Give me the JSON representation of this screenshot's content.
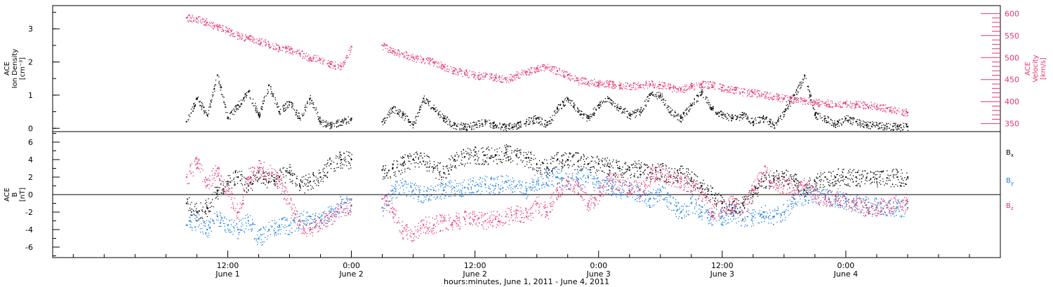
{
  "chart_data": [
    {
      "type": "scatter",
      "panel": "ion-density-velocity",
      "ylabel_lines": [
        "ACE",
        "Ion Density",
        "[cm⁻³]"
      ],
      "ylim": [
        -0.1,
        3.7
      ],
      "yticks": [
        0,
        1,
        2,
        3
      ],
      "y2label_lines": [
        "ACE",
        "Velocity",
        "[km/s]"
      ],
      "y2lim": [
        332,
        618
      ],
      "y2ticks": [
        350,
        400,
        450,
        500,
        550,
        600
      ],
      "series": [
        {
          "name": "Ion Density",
          "axis": "left",
          "color": "#000000",
          "x": [
            8.0,
            9.0,
            10.0,
            11.0,
            12.0,
            13.0,
            14.0,
            15.0,
            16.0,
            17.0,
            18.0,
            19.0,
            20.0,
            21.0,
            22.0,
            23.0,
            24.0,
            27.0,
            28.0,
            29.0,
            30.0,
            31.0,
            32.0,
            33.0,
            34.0,
            35.0,
            36.0,
            37.0,
            38.0,
            39.0,
            40.0,
            41.0,
            42.0,
            43.0,
            44.0,
            45.0,
            46.0,
            47.0,
            48.0,
            49.0,
            50.0,
            51.0,
            52.0,
            53.0,
            54.0,
            55.0,
            56.0,
            57.0,
            58.0,
            59.0,
            60.0,
            61.0,
            62.0,
            63.0,
            64.0,
            65.0,
            66.0,
            67.0,
            68.0,
            69.0,
            70.0,
            71.0,
            72.0,
            73.0,
            74.0,
            75.0,
            76.0,
            77.0,
            78.0
          ],
          "y": [
            0.2,
            0.9,
            0.4,
            1.6,
            0.3,
            0.7,
            1.1,
            0.4,
            1.3,
            0.5,
            0.8,
            0.3,
            0.9,
            0.2,
            0.1,
            0.2,
            0.3,
            0.2,
            0.6,
            0.4,
            0.1,
            0.9,
            0.6,
            0.3,
            0.1,
            0.05,
            0.1,
            0.2,
            0.1,
            0.05,
            0.1,
            0.2,
            0.3,
            0.1,
            0.6,
            0.9,
            0.5,
            0.3,
            0.7,
            0.9,
            0.6,
            0.4,
            0.5,
            1.0,
            1.0,
            0.5,
            0.3,
            0.7,
            1.1,
            0.6,
            0.4,
            0.3,
            0.4,
            0.2,
            0.3,
            0.1,
            0.5,
            1.0,
            1.6,
            0.4,
            0.3,
            0.1,
            0.3,
            0.2,
            0.1,
            0.1,
            0.05,
            0.05,
            0.05
          ]
        },
        {
          "name": "Velocity",
          "axis": "right",
          "color": "#e8356a",
          "x": [
            8.0,
            9.0,
            10.0,
            11.0,
            12.0,
            13.0,
            14.0,
            15.0,
            16.0,
            17.0,
            18.0,
            19.0,
            20.0,
            21.0,
            22.0,
            23.0,
            24.0,
            27.0,
            28.0,
            29.0,
            30.0,
            31.0,
            32.0,
            33.0,
            34.0,
            35.0,
            36.0,
            37.0,
            38.0,
            39.0,
            40.0,
            41.0,
            42.0,
            43.0,
            44.0,
            45.0,
            46.0,
            47.0,
            48.0,
            49.0,
            50.0,
            51.0,
            52.0,
            53.0,
            54.0,
            55.0,
            56.0,
            57.0,
            58.0,
            59.0,
            60.0,
            61.0,
            62.0,
            63.0,
            64.0,
            65.0,
            66.0,
            67.0,
            68.0,
            69.0,
            70.0,
            71.0,
            72.0,
            73.0,
            74.0,
            75.0,
            76.0,
            77.0,
            78.0
          ],
          "y": [
            590,
            588,
            580,
            570,
            560,
            550,
            545,
            538,
            530,
            522,
            518,
            510,
            500,
            495,
            485,
            480,
            525,
            528,
            515,
            508,
            500,
            495,
            490,
            480,
            470,
            465,
            460,
            458,
            455,
            450,
            460,
            468,
            475,
            478,
            470,
            460,
            448,
            445,
            442,
            440,
            437,
            435,
            437,
            440,
            438,
            432,
            428,
            435,
            440,
            438,
            432,
            427,
            422,
            420,
            416,
            412,
            408,
            405,
            402,
            398,
            397,
            395,
            395,
            394,
            392,
            390,
            385,
            380,
            375
          ]
        }
      ]
    },
    {
      "type": "scatter",
      "panel": "magnetic-field",
      "ylabel_lines": [
        "ACE",
        "B",
        "[nT]"
      ],
      "ylim": [
        -7.2,
        7.2
      ],
      "yticks": [
        -6,
        -4,
        -2,
        0,
        2,
        4,
        6
      ],
      "zero_line": true,
      "series": [
        {
          "name": "Bx",
          "color": "#000000",
          "x": [
            8.0,
            9.0,
            10.0,
            11.0,
            12.0,
            13.0,
            14.0,
            15.0,
            16.0,
            17.0,
            18.0,
            19.0,
            20.0,
            21.0,
            22.0,
            23.0,
            24.0,
            27.0,
            28.0,
            29.0,
            30.0,
            31.0,
            32.0,
            33.0,
            34.0,
            35.0,
            36.0,
            37.0,
            38.0,
            39.0,
            40.0,
            41.0,
            42.0,
            43.0,
            44.0,
            45.0,
            46.0,
            47.0,
            48.0,
            49.0,
            50.0,
            51.0,
            52.0,
            53.0,
            54.0,
            55.0,
            56.0,
            57.0,
            58.0,
            59.0,
            60.0,
            61.0,
            62.0,
            63.0,
            64.0,
            65.0,
            66.0,
            67.0,
            68.0,
            69.0,
            70.0,
            71.0,
            72.0,
            73.0,
            74.0,
            75.0,
            76.0,
            77.0,
            78.0
          ],
          "y": [
            -1.0,
            -2.0,
            -1.5,
            0.5,
            1.5,
            2.0,
            1.0,
            2.5,
            1.5,
            2.0,
            2.5,
            1.0,
            1.5,
            2.0,
            3.5,
            4.0,
            4.0,
            2.8,
            3.0,
            3.5,
            4.0,
            3.8,
            3.0,
            2.5,
            4.0,
            4.3,
            4.5,
            4.5,
            4.5,
            4.8,
            4.5,
            4.2,
            3.5,
            3.0,
            4.0,
            4.0,
            3.8,
            3.5,
            3.5,
            3.2,
            3.0,
            2.8,
            3.0,
            2.5,
            2.8,
            2.0,
            2.5,
            1.8,
            1.0,
            0.0,
            -1.0,
            -1.5,
            -1.0,
            0.0,
            1.5,
            1.8,
            2.0,
            1.5,
            0.5,
            1.5,
            2.0,
            2.0,
            2.0,
            2.0,
            1.9,
            1.8,
            1.9,
            2.0,
            2.0
          ]
        },
        {
          "name": "By",
          "color": "#1a7fe0",
          "x": [
            8.0,
            9.0,
            10.0,
            11.0,
            12.0,
            13.0,
            14.0,
            15.0,
            16.0,
            17.0,
            18.0,
            19.0,
            20.0,
            21.0,
            22.0,
            23.0,
            24.0,
            27.0,
            28.0,
            29.0,
            30.0,
            31.0,
            32.0,
            33.0,
            34.0,
            35.0,
            36.0,
            37.0,
            38.0,
            39.0,
            40.0,
            41.0,
            42.0,
            43.0,
            44.0,
            45.0,
            46.0,
            47.0,
            48.0,
            49.0,
            50.0,
            51.0,
            52.0,
            53.0,
            54.0,
            55.0,
            56.0,
            57.0,
            58.0,
            59.0,
            60.0,
            61.0,
            62.0,
            63.0,
            64.0,
            65.0,
            66.0,
            67.0,
            68.0,
            69.0,
            70.0,
            71.0,
            72.0,
            73.0,
            74.0,
            75.0,
            76.0,
            77.0,
            78.0
          ],
          "y": [
            -3.5,
            -3.0,
            -4.0,
            -2.5,
            -3.5,
            -4.0,
            -3.0,
            -5.0,
            -4.0,
            -3.5,
            -3.5,
            -3.0,
            -2.5,
            -3.0,
            -2.0,
            -1.0,
            -1.2,
            -1.5,
            0.5,
            1.0,
            0.5,
            0.0,
            0.5,
            0.5,
            0.8,
            0.8,
            1.0,
            1.2,
            1.0,
            1.5,
            1.0,
            0.5,
            1.5,
            2.0,
            2.0,
            1.5,
            1.8,
            2.0,
            1.5,
            1.0,
            0.5,
            0.5,
            0.0,
            -0.5,
            0.5,
            -1.0,
            -2.0,
            -1.0,
            -2.0,
            -2.5,
            -2.5,
            -2.0,
            -2.8,
            -2.5,
            -2.0,
            -2.5,
            -2.0,
            -0.5,
            -0.2,
            0.0,
            -0.3,
            -0.5,
            -0.8,
            -1.0,
            -1.2,
            -1.3,
            -1.5,
            -1.5,
            -1.5
          ]
        },
        {
          "name": "Bz",
          "color": "#e8356a",
          "x": [
            8.0,
            9.0,
            10.0,
            11.0,
            12.0,
            13.0,
            14.0,
            15.0,
            16.0,
            17.0,
            18.0,
            19.0,
            20.0,
            21.0,
            22.0,
            23.0,
            24.0,
            27.0,
            28.0,
            29.0,
            30.0,
            31.0,
            32.0,
            33.0,
            34.0,
            35.0,
            36.0,
            37.0,
            38.0,
            39.0,
            40.0,
            41.0,
            42.0,
            43.0,
            44.0,
            45.0,
            46.0,
            47.0,
            48.0,
            49.0,
            50.0,
            51.0,
            52.0,
            53.0,
            54.0,
            55.0,
            56.0,
            57.0,
            58.0,
            59.0,
            60.0,
            61.0,
            62.0,
            63.0,
            64.0,
            65.0,
            66.0,
            67.0,
            68.0,
            69.0,
            70.0,
            71.0,
            72.0,
            73.0,
            74.0,
            75.0,
            76.0,
            77.0,
            78.0
          ],
          "y": [
            2.0,
            3.5,
            1.0,
            3.0,
            0.0,
            -2.0,
            2.0,
            3.0,
            2.5,
            1.5,
            -1.0,
            -3.5,
            -4.0,
            -3.0,
            -2.5,
            -1.5,
            -1.3,
            -0.5,
            -2.0,
            -4.2,
            -4.5,
            -3.5,
            -3.5,
            -3.0,
            -3.0,
            -2.8,
            -2.5,
            -3.0,
            -2.8,
            -2.5,
            -2.2,
            -2.5,
            -1.0,
            -2.0,
            0.5,
            1.5,
            1.0,
            -1.0,
            0.0,
            1.5,
            1.5,
            1.0,
            0.5,
            2.0,
            2.5,
            2.0,
            1.5,
            1.0,
            0.0,
            -2.0,
            -1.5,
            -1.0,
            -2.0,
            0.5,
            2.5,
            1.5,
            1.0,
            0.5,
            1.0,
            0.0,
            -0.5,
            -0.2,
            -0.5,
            -1.2,
            -1.5,
            -1.5,
            -1.2,
            -1.0,
            -0.8
          ]
        }
      ]
    }
  ],
  "x_axis": {
    "label": "hours:minutes, June  1, 2011 - June  4, 2011",
    "xlim": [
      -5,
      87
    ],
    "major_ticks": [
      {
        "x": 12,
        "time": "12:00",
        "date": "June 1"
      },
      {
        "x": 24,
        "time": "0:00",
        "date": "June 2"
      },
      {
        "x": 36,
        "time": "12:00",
        "date": "June 2"
      },
      {
        "x": 48,
        "time": "0:00",
        "date": "June 3"
      },
      {
        "x": 60,
        "time": "12:00",
        "date": "June 3"
      },
      {
        "x": 72,
        "time": "0:00",
        "date": "June 4"
      }
    ],
    "minor_tick_step": 3
  },
  "legend": [
    {
      "base": "B",
      "sub": "x",
      "color": "#000000"
    },
    {
      "base": "B",
      "sub": "y",
      "color": "#1a7fe0"
    },
    {
      "base": "B",
      "sub": "z",
      "color": "#e8356a"
    }
  ]
}
